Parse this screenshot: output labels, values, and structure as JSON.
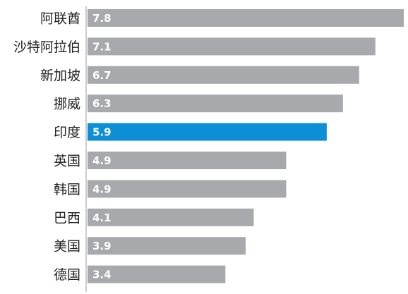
{
  "chart_data": {
    "type": "bar",
    "orientation": "horizontal",
    "categories": [
      "阿联酋",
      "沙特阿拉伯",
      "新加坡",
      "挪威",
      "印度",
      "英国",
      "韩国",
      "巴西",
      "美国",
      "德国"
    ],
    "values": [
      7.8,
      7.1,
      6.7,
      6.3,
      5.9,
      4.9,
      4.9,
      4.1,
      3.9,
      3.4
    ],
    "value_labels": [
      "7.8",
      "7.1",
      "6.7",
      "6.3",
      "5.9",
      "4.9",
      "4.9",
      "4.1",
      "3.9",
      "3.4"
    ],
    "highlight_index": 4,
    "colors": {
      "bar": "#a7a9ac",
      "highlight_bar": "#0c8fd6",
      "label": "#222222",
      "highlight_label": "#2a5fb0",
      "axis": "#999999"
    },
    "xlim": [
      0,
      7.8
    ],
    "title": "",
    "xlabel": "",
    "ylabel": ""
  }
}
